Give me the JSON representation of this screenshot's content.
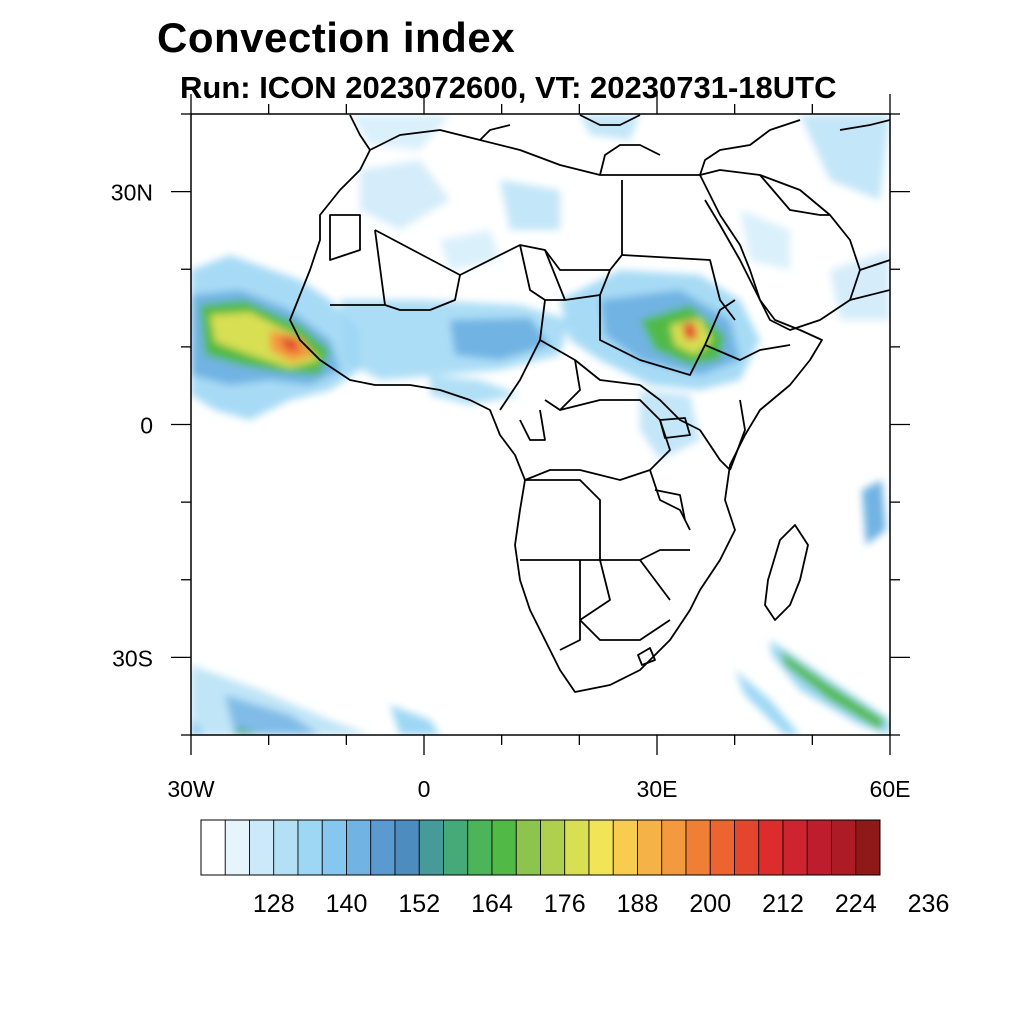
{
  "title": "Convection index",
  "subtitle": "Run: ICON 2023072600,  VT: 20230731-18UTC",
  "map": {
    "lon_range": [
      -30,
      60
    ],
    "lat_range": [
      -40,
      40
    ],
    "lat_ticks": [
      {
        "value": 30,
        "label": "30N"
      },
      {
        "value": 0,
        "label": "0"
      },
      {
        "value": -30,
        "label": "30S"
      }
    ],
    "lon_ticks": [
      {
        "value": -30,
        "label": "30W"
      },
      {
        "value": 0,
        "label": "0"
      },
      {
        "value": 30,
        "label": "30E"
      },
      {
        "value": 60,
        "label": "60E"
      }
    ]
  },
  "colorbar": {
    "colors": [
      "#ffffff",
      "#e6f4fc",
      "#cbe9f9",
      "#b4e0f6",
      "#9dd7f4",
      "#85c7ee",
      "#71b3e3",
      "#5a9ad0",
      "#4c8cbf",
      "#479a9a",
      "#46aa78",
      "#4cb559",
      "#51ba47",
      "#8cc44e",
      "#afd04f",
      "#d8df52",
      "#f1e456",
      "#f7cc4f",
      "#f5b247",
      "#f39a3f",
      "#f07f36",
      "#ec6530",
      "#e4462d",
      "#dc2d2c",
      "#ce2430",
      "#be1d2d",
      "#ac1b26",
      "#8f1919"
    ],
    "labels": [
      "128",
      "140",
      "152",
      "164",
      "176",
      "188",
      "200",
      "212",
      "224",
      "236"
    ]
  }
}
